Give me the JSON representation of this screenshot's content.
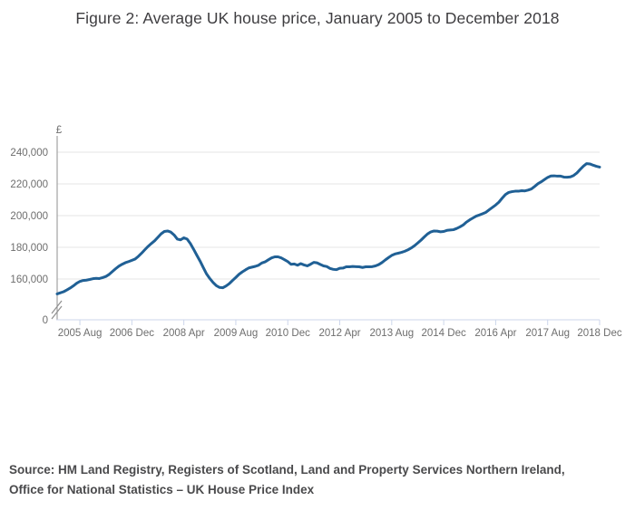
{
  "title": "Figure 2: Average UK house price, January 2005 to December 2018",
  "source": {
    "line1": "Source: HM Land Registry, Registers of Scotland, Land and Property Services Northern Ireland,",
    "line2": "Office for National Statistics – UK House Price Index"
  },
  "chart_data": {
    "type": "line",
    "title": "Figure 2: Average UK house price, January 2005 to December 2018",
    "currency_label": "£",
    "x_start": "2005-01",
    "x_end": "2018-12",
    "x_tick_labels": [
      "2005 Aug",
      "2006 Dec",
      "2008 Apr",
      "2009 Aug",
      "2010 Dec",
      "2012 Apr",
      "2013 Aug",
      "2014 Dec",
      "2016 Apr",
      "2017 Aug",
      "2018 Dec"
    ],
    "x_tick_month_indices": [
      7,
      23,
      39,
      55,
      71,
      87,
      103,
      119,
      135,
      151,
      167
    ],
    "y_ticks": [
      240000,
      220000,
      200000,
      180000,
      160000
    ],
    "y_zero_label": "0",
    "axis_break": true,
    "grid": true,
    "legend": "none",
    "series": [
      {
        "name": "Average UK house price (£)",
        "values": [
          150600,
          151300,
          152000,
          153100,
          154300,
          155700,
          157300,
          158500,
          159100,
          159300,
          159700,
          160200,
          160400,
          160300,
          160900,
          161600,
          162900,
          164700,
          166500,
          168100,
          169300,
          170300,
          171000,
          171800,
          172600,
          174300,
          176300,
          178500,
          180600,
          182400,
          184100,
          186300,
          188500,
          190000,
          190300,
          189600,
          187800,
          185200,
          184700,
          186000,
          185200,
          182400,
          178800,
          175000,
          171300,
          167200,
          163200,
          160300,
          157800,
          155800,
          154700,
          154500,
          155600,
          157100,
          159100,
          161000,
          163000,
          164500,
          165800,
          167000,
          167500,
          168000,
          168700,
          170100,
          170800,
          172100,
          173300,
          174000,
          174000,
          173300,
          172200,
          171000,
          169300,
          169500,
          168700,
          169700,
          168900,
          168300,
          169300,
          170500,
          170200,
          169200,
          168300,
          167900,
          166700,
          166100,
          165900,
          166800,
          166900,
          167700,
          167700,
          167900,
          167800,
          167700,
          167300,
          167700,
          167700,
          167800,
          168300,
          169100,
          170400,
          172000,
          173500,
          174900,
          175800,
          176300,
          176800,
          177500,
          178400,
          179600,
          181000,
          182700,
          184500,
          186500,
          188400,
          189700,
          190300,
          190200,
          189800,
          190000,
          190700,
          190900,
          191100,
          191900,
          192900,
          194100,
          195900,
          197300,
          198500,
          199700,
          200400,
          201200,
          202100,
          203700,
          205200,
          206700,
          208500,
          211000,
          213300,
          214600,
          215100,
          215400,
          215400,
          215700,
          215600,
          216100,
          216800,
          218400,
          220100,
          221300,
          222700,
          224100,
          225000,
          225100,
          224900,
          224900,
          224300,
          224200,
          224400,
          225300,
          226900,
          229100,
          231200,
          232800,
          232600,
          231800,
          231100,
          230600
        ]
      }
    ],
    "colors": {
      "line": "#206095",
      "grid": "#e6e6e6",
      "x_axis": "#ccd6eb",
      "y_axis": "#8f8f8f",
      "tick_labels": "#6e6e6e",
      "title_text": "#3e3d40",
      "source_text": "#4a4a4c"
    }
  }
}
